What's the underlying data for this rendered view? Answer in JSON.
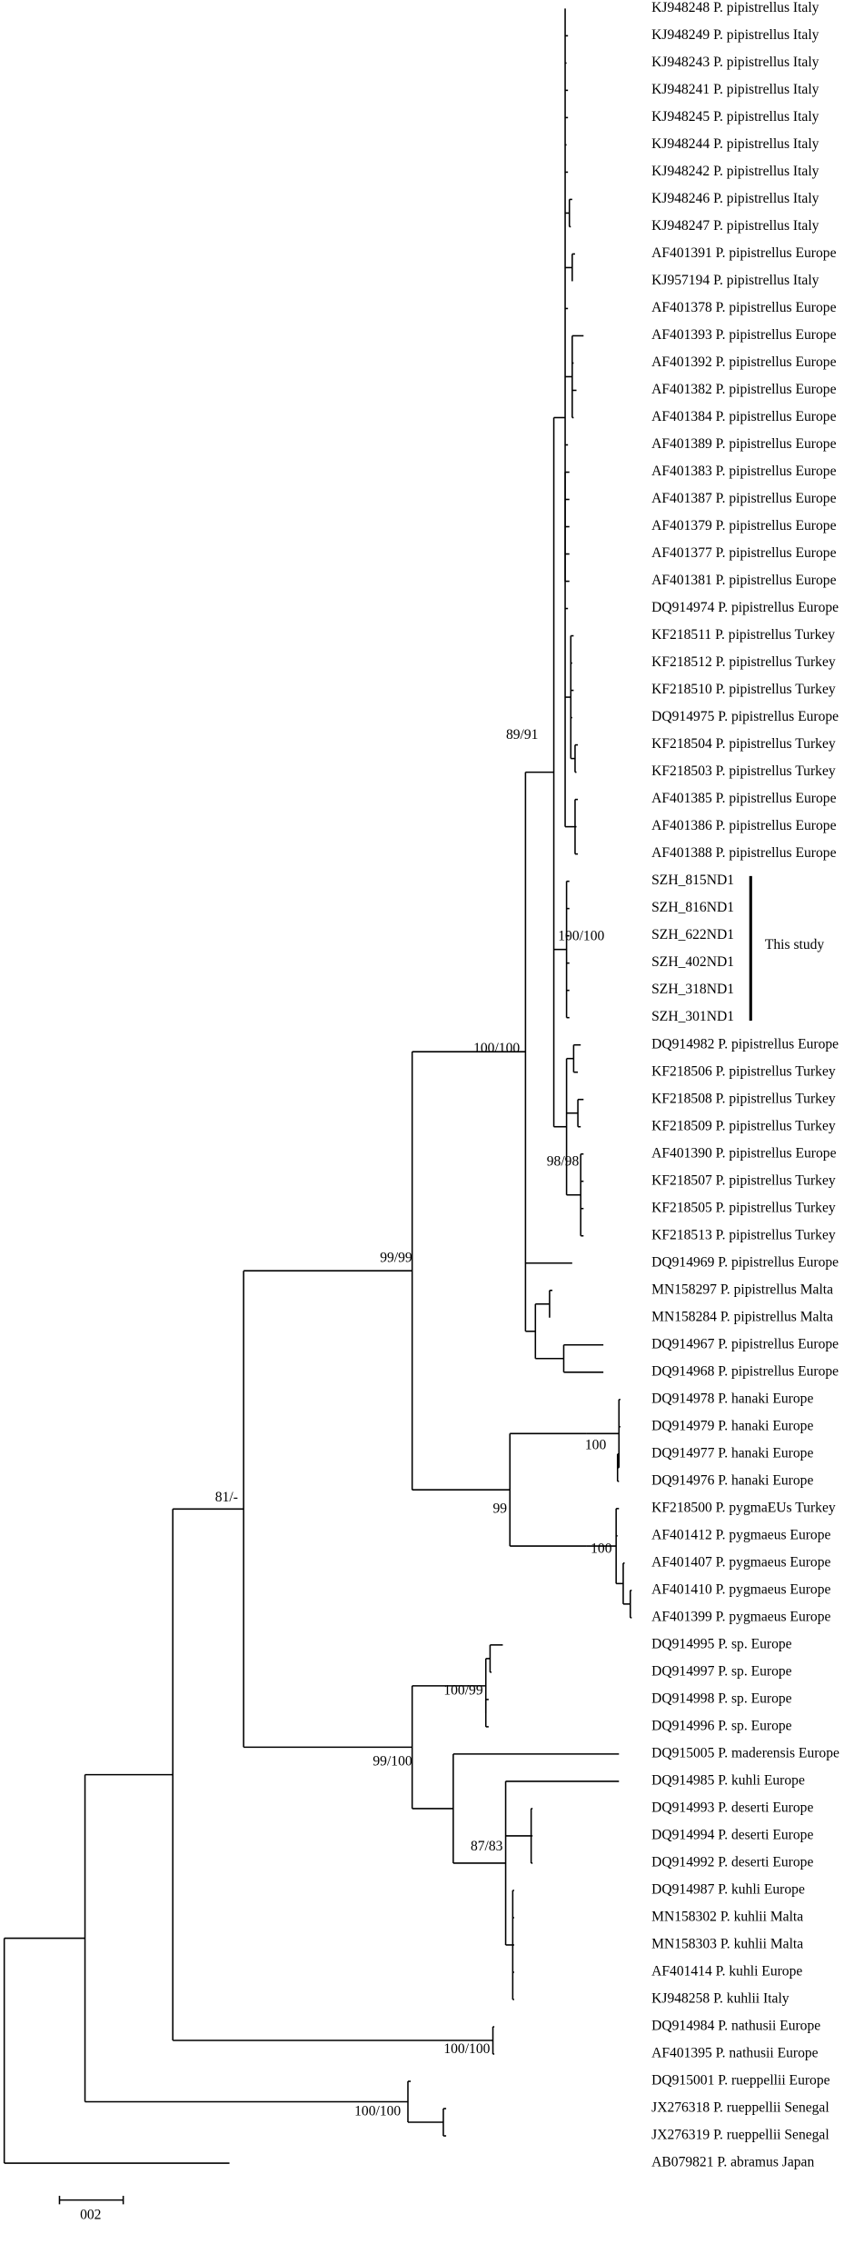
{
  "leaves": [
    "KJ948248 P. pipistrellus Italy",
    "KJ948249 P. pipistrellus Italy",
    "KJ948243 P. pipistrellus Italy",
    "KJ948241 P. pipistrellus Italy",
    "KJ948245 P. pipistrellus Italy",
    "KJ948244 P. pipistrellus Italy",
    "KJ948242 P. pipistrellus Italy",
    "KJ948246 P. pipistrellus Italy",
    "KJ948247 P. pipistrellus Italy",
    "AF401391 P. pipistrellus Europe",
    "KJ957194 P. pipistrellus Italy",
    "AF401378 P. pipistrellus Europe",
    "AF401393 P. pipistrellus Europe",
    "AF401392 P. pipistrellus Europe",
    "AF401382 P. pipistrellus Europe",
    "AF401384 P. pipistrellus Europe",
    "AF401389 P. pipistrellus Europe",
    "AF401383 P. pipistrellus Europe",
    "AF401387 P. pipistrellus Europe",
    "AF401379 P. pipistrellus Europe",
    "AF401377 P. pipistrellus Europe",
    "AF401381 P. pipistrellus Europe",
    "DQ914974 P. pipistrellus Europe",
    "KF218511 P. pipistrellus Turkey",
    "KF218512 P. pipistrellus Turkey",
    "KF218510 P. pipistrellus Turkey",
    "DQ914975 P. pipistrellus Europe",
    "KF218504 P. pipistrellus Turkey",
    "KF218503 P. pipistrellus Turkey",
    "AF401385 P. pipistrellus Europe",
    "AF401386 P. pipistrellus Europe",
    "AF401388 P. pipistrellus Europe",
    "SZH_815ND1",
    "SZH_816ND1",
    "SZH_622ND1",
    "SZH_402ND1",
    "SZH_318ND1",
    "SZH_301ND1",
    "DQ914982 P. pipistrellus Europe",
    "KF218506 P. pipistrellus Turkey",
    "KF218508 P. pipistrellus Turkey",
    "KF218509 P. pipistrellus Turkey",
    "AF401390 P. pipistrellus Europe",
    "KF218507 P. pipistrellus Turkey",
    "KF218505 P. pipistrellus Turkey",
    "KF218513 P. pipistrellus Turkey",
    "DQ914969 P. pipistrellus Europe",
    "MN158297 P. pipistrellus Malta",
    "MN158284 P. pipistrellus Malta",
    "DQ914967 P. pipistrellus Europe",
    "DQ914968 P. pipistrellus Europe",
    "DQ914978 P. hanaki Europe",
    "DQ914979 P. hanaki Europe",
    "DQ914977 P. hanaki Europe",
    "DQ914976 P. hanaki Europe",
    "KF218500 P. pygmaEUs Turkey",
    "AF401412 P. pygmaeus Europe",
    "AF401407 P. pygmaeus Europe",
    "AF401410 P. pygmaeus Europe",
    "AF401399 P. pygmaeus Europe",
    "DQ914995 P. sp. Europe",
    "DQ914997 P. sp. Europe",
    "DQ914998 P. sp. Europe",
    "DQ914996 P. sp. Europe",
    "DQ915005 P. maderensis Europe",
    "DQ914985 P. kuhli Europe",
    "DQ914993 P. deserti Europe",
    "DQ914994 P. deserti Europe",
    "DQ914992 P. deserti Europe",
    "DQ914987 P. kuhli Europe",
    "MN158302 P. kuhlii Malta",
    "MN158303 P. kuhlii Malta",
    "AF401414 P. kuhli Europe",
    "KJ948258 P. kuhlii Italy",
    "DQ914984 P. nathusii Europe",
    "AF401395 P. nathusii Europe",
    "DQ915001 P. rueppellii Europe",
    "JX276318 P. rueppellii Senegal",
    "JX276319 P. rueppellii Senegal",
    "AB079821 P. abramus Japan"
  ],
  "support": [
    "89/91",
    "100/100",
    "100/100",
    "98/98",
    "99/99",
    "100",
    "99",
    "81/-",
    "100",
    "100/99",
    "99/100",
    "87/83",
    "100/100",
    "100/100"
  ],
  "annotation": "This study",
  "scale_bar": "002"
}
